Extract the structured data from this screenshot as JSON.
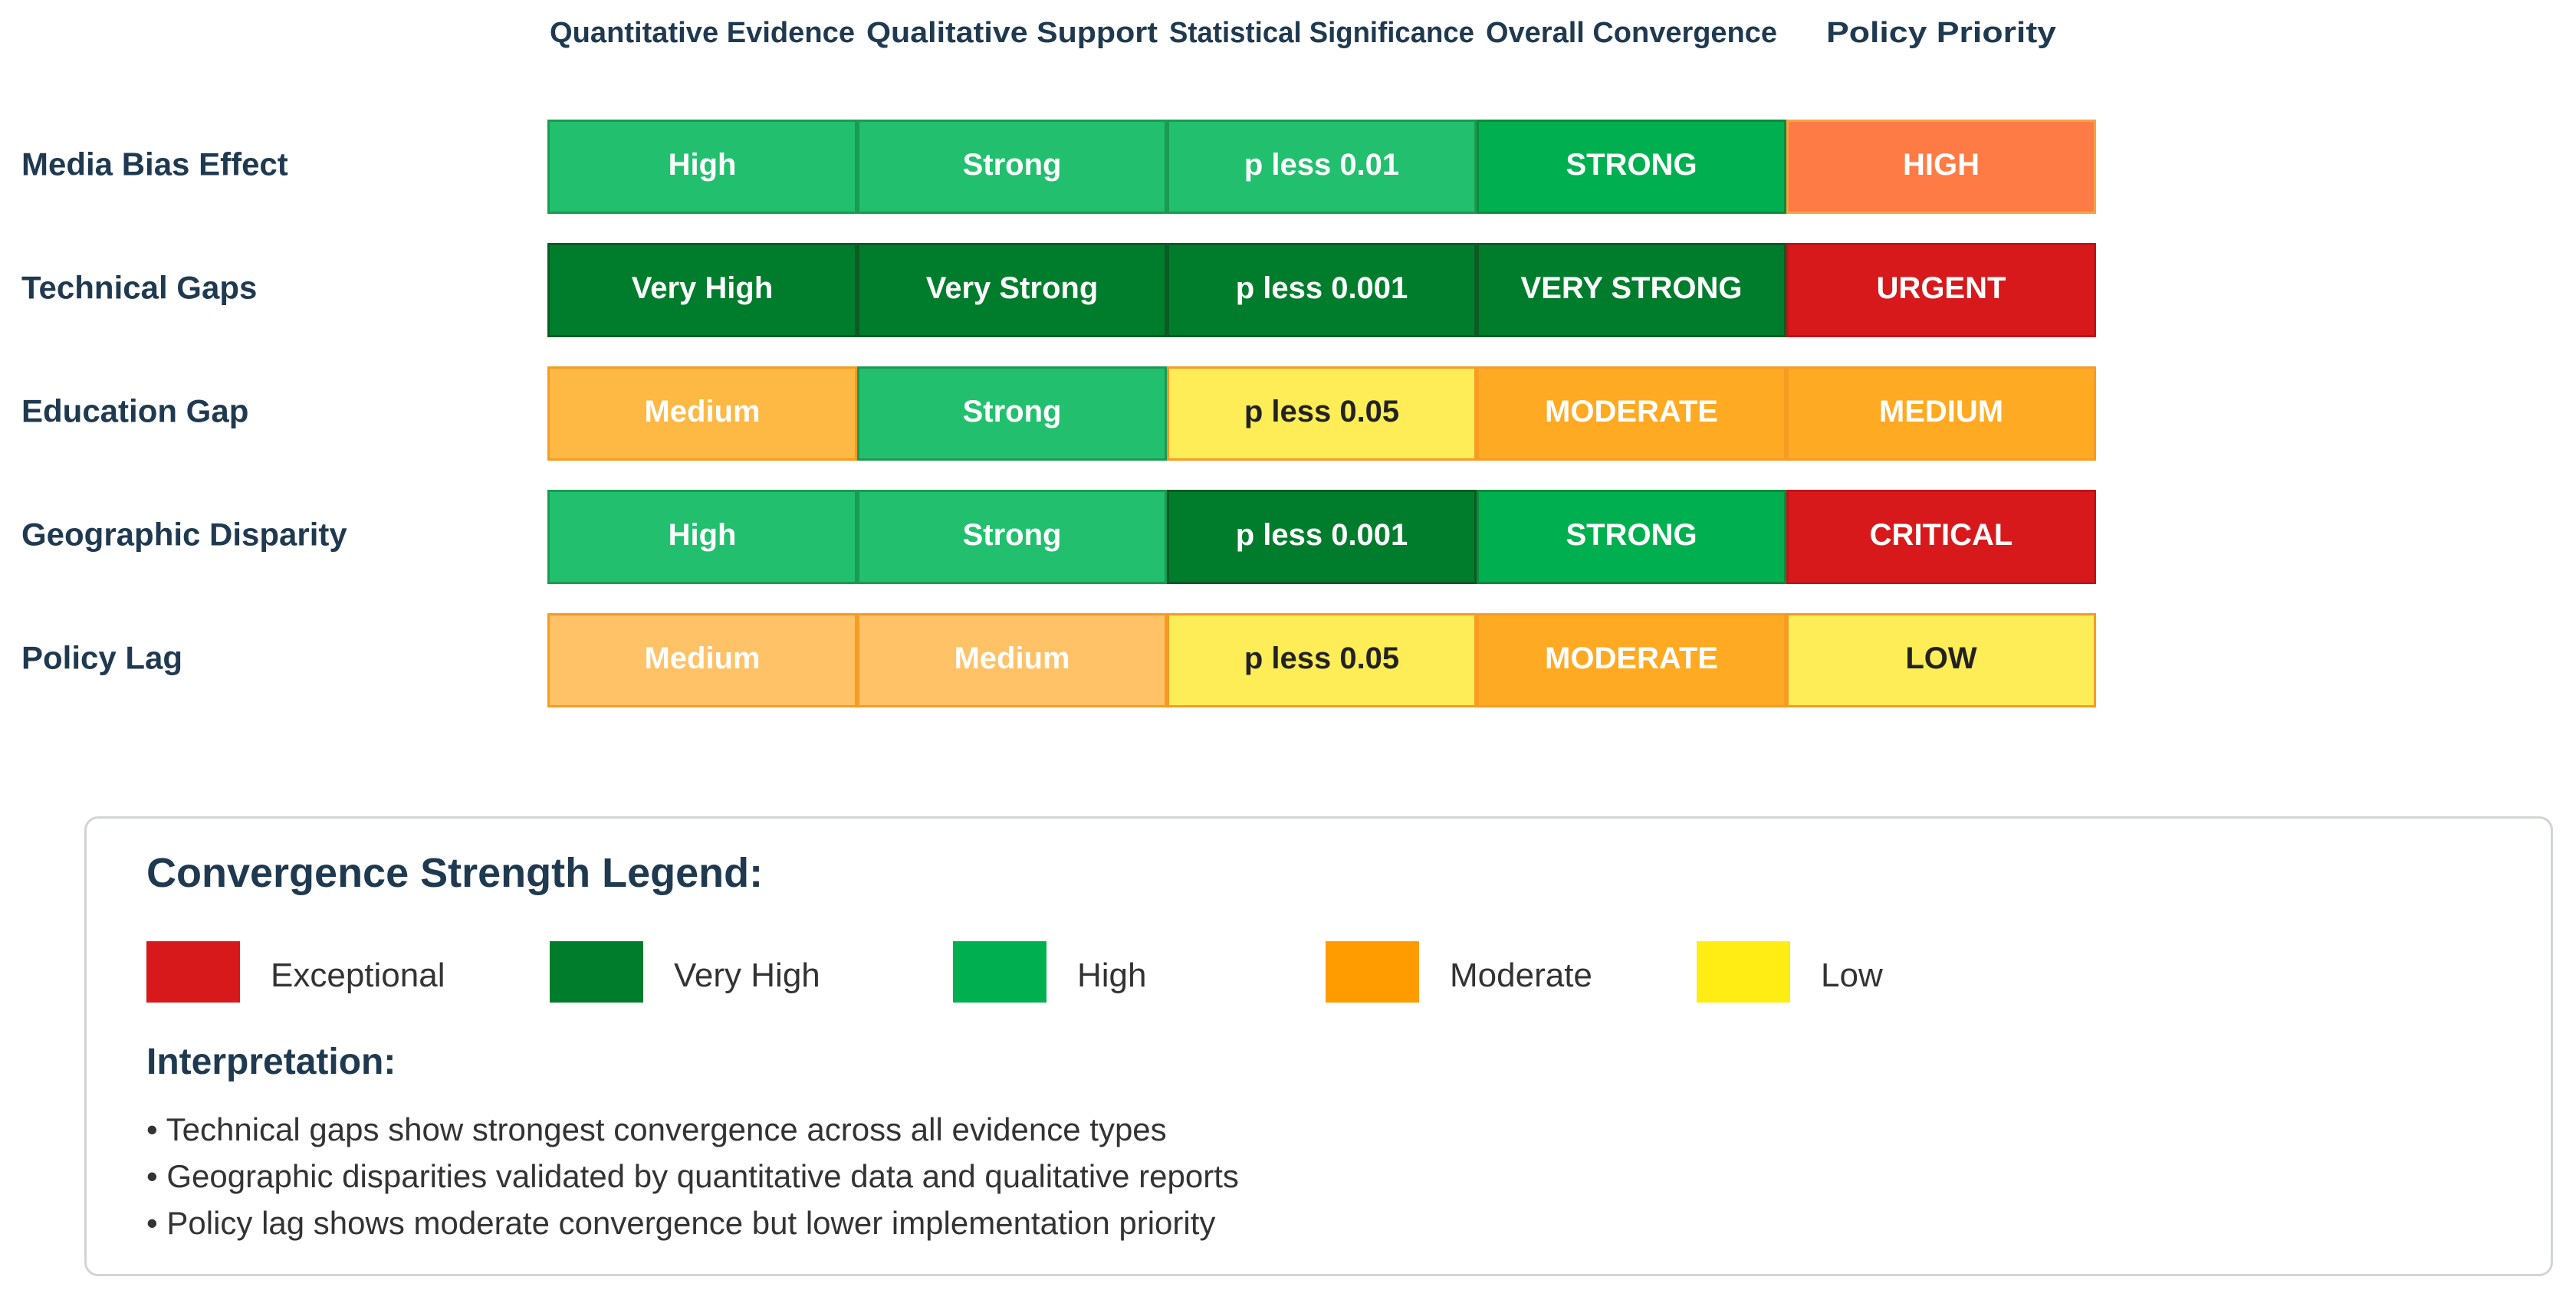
{
  "chart_data": {
    "type": "heatmap",
    "columns": [
      "Quantitative Evidence",
      "Qualitative Support",
      "Statistical Significance",
      "Overall Convergence",
      "Policy Priority"
    ],
    "rows": [
      {
        "label": "Media Bias Effect",
        "cells": [
          {
            "text": "High",
            "fill": "#22c06e",
            "stroke": "#1a9a52",
            "text_color": "#ffffff"
          },
          {
            "text": "Strong",
            "fill": "#22c06e",
            "stroke": "#1a9a52",
            "text_color": "#ffffff"
          },
          {
            "text": "p less 0.01",
            "fill": "#22c06e",
            "stroke": "#1a9a52",
            "text_color": "#ffffff"
          },
          {
            "text": "STRONG",
            "fill": "#00b050",
            "stroke": "#0f8a3c",
            "text_color": "#ffffff"
          },
          {
            "text": "HIGH",
            "fill": "#ff7b45",
            "stroke": "#f5a342",
            "text_color": "#ffffff"
          }
        ]
      },
      {
        "label": "Technical Gaps",
        "cells": [
          {
            "text": "Very High",
            "fill": "#007d2c",
            "stroke": "#0c5a24",
            "text_color": "#ffffff"
          },
          {
            "text": "Very Strong",
            "fill": "#007d2c",
            "stroke": "#0c5a24",
            "text_color": "#ffffff"
          },
          {
            "text": "p less 0.001",
            "fill": "#007d2c",
            "stroke": "#0c5a24",
            "text_color": "#ffffff"
          },
          {
            "text": "VERY STRONG",
            "fill": "#007d2c",
            "stroke": "#0c5a24",
            "text_color": "#ffffff"
          },
          {
            "text": "URGENT",
            "fill": "#d7191c",
            "stroke": "#c01417",
            "text_color": "#ffffff"
          }
        ]
      },
      {
        "label": "Education Gap",
        "cells": [
          {
            "text": "Medium",
            "fill": "#feb844",
            "stroke": "#f79b22",
            "text_color": "#ffffff"
          },
          {
            "text": "Strong",
            "fill": "#22c06e",
            "stroke": "#1a9a52",
            "text_color": "#ffffff"
          },
          {
            "text": "p less 0.05",
            "fill": "#ffed57",
            "stroke": "#f79b22",
            "text_color": "#222222"
          },
          {
            "text": "MODERATE",
            "fill": "#ffaa22",
            "stroke": "#f79b22",
            "text_color": "#ffffff"
          },
          {
            "text": "MEDIUM",
            "fill": "#ffaa22",
            "stroke": "#f79b22",
            "text_color": "#ffffff"
          }
        ]
      },
      {
        "label": "Geographic Disparity",
        "cells": [
          {
            "text": "High",
            "fill": "#22c06e",
            "stroke": "#1a9a52",
            "text_color": "#ffffff"
          },
          {
            "text": "Strong",
            "fill": "#22c06e",
            "stroke": "#1a9a52",
            "text_color": "#ffffff"
          },
          {
            "text": "p less 0.001",
            "fill": "#007d2c",
            "stroke": "#0c5a24",
            "text_color": "#ffffff"
          },
          {
            "text": "STRONG",
            "fill": "#00b050",
            "stroke": "#0f8a3c",
            "text_color": "#ffffff"
          },
          {
            "text": "CRITICAL",
            "fill": "#d7191c",
            "stroke": "#c01417",
            "text_color": "#ffffff"
          }
        ]
      },
      {
        "label": "Policy Lag",
        "cells": [
          {
            "text": "Medium",
            "fill": "#ffc266",
            "stroke": "#f79b22",
            "text_color": "#ffffff"
          },
          {
            "text": "Medium",
            "fill": "#ffc266",
            "stroke": "#f79b22",
            "text_color": "#ffffff"
          },
          {
            "text": "p less 0.05",
            "fill": "#ffed57",
            "stroke": "#f79b22",
            "text_color": "#222222"
          },
          {
            "text": "MODERATE",
            "fill": "#ffaa22",
            "stroke": "#f79b22",
            "text_color": "#ffffff"
          },
          {
            "text": "LOW",
            "fill": "#ffed57",
            "stroke": "#f79b22",
            "text_color": "#222222"
          }
        ]
      }
    ]
  },
  "legend": {
    "title": "Convergence Strength Legend:",
    "items": [
      {
        "label": "Exceptional",
        "color": "#d7191c"
      },
      {
        "label": "Very High",
        "color": "#007d2c"
      },
      {
        "label": "High",
        "color": "#00b050"
      },
      {
        "label": "Moderate",
        "color": "#ff9c00"
      },
      {
        "label": "Low",
        "color": "#ffed13"
      }
    ]
  },
  "interpretation": {
    "title": "Interpretation:",
    "bullets": [
      "• Technical gaps show strongest convergence across all evidence types",
      "• Geographic disparities validated by quantitative data and qualitative reports",
      "• Policy lag shows moderate convergence but lower implementation priority"
    ]
  }
}
